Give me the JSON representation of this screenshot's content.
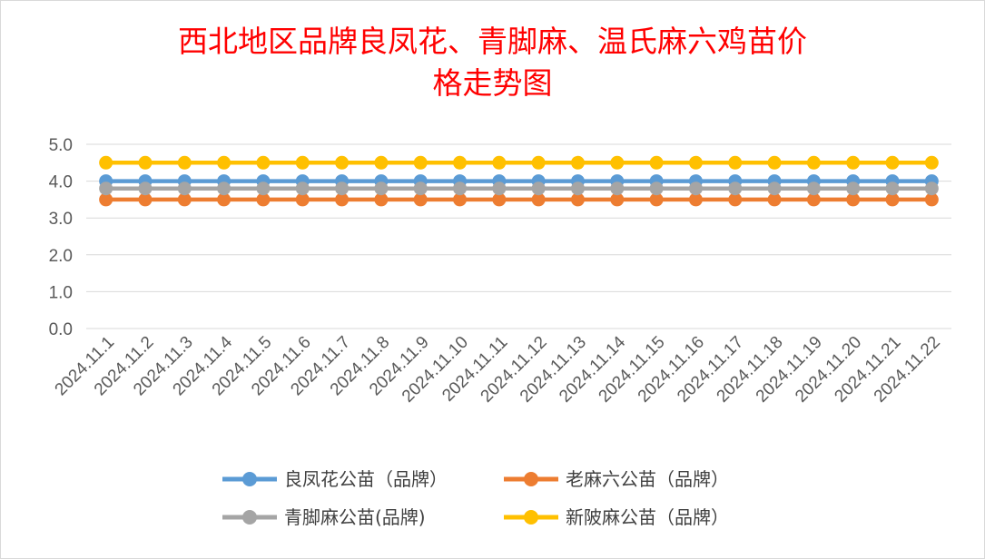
{
  "chart_data": {
    "type": "line",
    "title_line1": "西北地区品牌良凤花、青脚麻、温氏麻六鸡苗价",
    "title_line2": "格走势图",
    "categories": [
      "2024.11.1",
      "2024.11.2",
      "2024.11.3",
      "2024.11.4",
      "2024.11.5",
      "2024.11.6",
      "2024.11.7",
      "2024.11.8",
      "2024.11.9",
      "2024.11.10",
      "2024.11.11",
      "2024.11.12",
      "2024.11.13",
      "2024.11.14",
      "2024.11.15",
      "2024.11.16",
      "2024.11.17",
      "2024.11.18",
      "2024.11.19",
      "2024.11.20",
      "2024.11.21",
      "2024.11.22"
    ],
    "ylim": [
      0,
      5
    ],
    "yticks": [
      "0.0",
      "1.0",
      "2.0",
      "3.0",
      "4.0",
      "5.0"
    ],
    "grid": true,
    "legend_position": "bottom",
    "series": [
      {
        "name": "良凤花公苗（品牌）",
        "color": "#5b9bd5",
        "values": [
          4.0,
          4.0,
          4.0,
          4.0,
          4.0,
          4.0,
          4.0,
          4.0,
          4.0,
          4.0,
          4.0,
          4.0,
          4.0,
          4.0,
          4.0,
          4.0,
          4.0,
          4.0,
          4.0,
          4.0,
          4.0,
          4.0
        ]
      },
      {
        "name": "老麻六公苗（品牌）",
        "color": "#ed7d31",
        "values": [
          3.5,
          3.5,
          3.5,
          3.5,
          3.5,
          3.5,
          3.5,
          3.5,
          3.5,
          3.5,
          3.5,
          3.5,
          3.5,
          3.5,
          3.5,
          3.5,
          3.5,
          3.5,
          3.5,
          3.5,
          3.5,
          3.5
        ]
      },
      {
        "name": "青脚麻公苗(品牌)",
        "color": "#a5a5a5",
        "values": [
          3.8,
          3.8,
          3.8,
          3.8,
          3.8,
          3.8,
          3.8,
          3.8,
          3.8,
          3.8,
          3.8,
          3.8,
          3.8,
          3.8,
          3.8,
          3.8,
          3.8,
          3.8,
          3.8,
          3.8,
          3.8,
          3.8
        ]
      },
      {
        "name": "新陂麻公苗（品牌）",
        "color": "#ffc000",
        "values": [
          4.5,
          4.5,
          4.5,
          4.5,
          4.5,
          4.5,
          4.5,
          4.5,
          4.5,
          4.5,
          4.5,
          4.5,
          4.5,
          4.5,
          4.5,
          4.5,
          4.5,
          4.5,
          4.5,
          4.5,
          4.5,
          4.5
        ]
      }
    ]
  }
}
